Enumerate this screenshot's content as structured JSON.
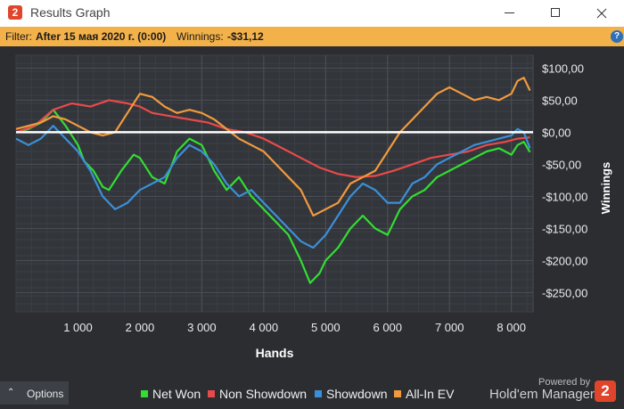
{
  "window": {
    "title": "Results Graph",
    "app_icon_glyph": "2"
  },
  "filter": {
    "label": "Filter:",
    "value": "After 15 мая 2020 г. (0:00)",
    "winnings_label": "Winnings:",
    "winnings_value": "-$31,12",
    "help_glyph": "?"
  },
  "chart_data": {
    "type": "line",
    "xlabel": "Hands",
    "ylabel": "Winnings",
    "x_ticks": [
      1000,
      2000,
      3000,
      4000,
      5000,
      6000,
      7000,
      8000
    ],
    "x_tick_labels": [
      "1 000",
      "2 000",
      "3 000",
      "4 000",
      "5 000",
      "6 000",
      "7 000",
      "8 000"
    ],
    "xlim": [
      0,
      8350
    ],
    "ylim": [
      -280,
      120
    ],
    "y_ticks": [
      100,
      50,
      0,
      -50,
      -100,
      -150,
      -200,
      -250
    ],
    "y_tick_labels": [
      "$100,00",
      "$50,00",
      "$0,00",
      "-$50,00",
      "-$100,00",
      "-$150,00",
      "-$200,00",
      "-$250,00"
    ],
    "grid": true,
    "legend_position": "bottom",
    "zero_line_color": "#ffffff",
    "series": [
      {
        "name": "Net Won",
        "color": "#33dd33",
        "x": [
          0,
          200,
          400,
          600,
          800,
          1000,
          1100,
          1250,
          1400,
          1500,
          1700,
          1900,
          2000,
          2200,
          2400,
          2600,
          2800,
          3000,
          3200,
          3400,
          3600,
          3800,
          4000,
          4200,
          4400,
          4600,
          4750,
          4900,
          5000,
          5200,
          5400,
          5600,
          5800,
          6000,
          6200,
          6400,
          6600,
          6800,
          7000,
          7200,
          7400,
          7600,
          7800,
          8000,
          8100,
          8200,
          8300
        ],
        "y": [
          0,
          5,
          15,
          35,
          10,
          -20,
          -45,
          -60,
          -85,
          -90,
          -60,
          -35,
          -40,
          -70,
          -80,
          -30,
          -10,
          -20,
          -60,
          -90,
          -70,
          -100,
          -120,
          -140,
          -160,
          -200,
          -235,
          -220,
          -200,
          -180,
          -150,
          -130,
          -150,
          -160,
          -120,
          -100,
          -90,
          -70,
          -60,
          -50,
          -40,
          -30,
          -25,
          -35,
          -20,
          -15,
          -31
        ]
      },
      {
        "name": "Non Showdown",
        "color": "#e84a4a",
        "x": [
          0,
          300,
          600,
          900,
          1200,
          1500,
          1800,
          2000,
          2200,
          2500,
          2800,
          3100,
          3400,
          3700,
          4000,
          4300,
          4600,
          4900,
          5200,
          5500,
          5800,
          6100,
          6400,
          6700,
          7000,
          7300,
          7600,
          7900,
          8100,
          8300
        ],
        "y": [
          0,
          10,
          35,
          45,
          40,
          50,
          45,
          40,
          30,
          25,
          20,
          15,
          5,
          0,
          -10,
          -25,
          -40,
          -55,
          -65,
          -70,
          -68,
          -60,
          -50,
          -40,
          -35,
          -30,
          -20,
          -15,
          -10,
          -8
        ]
      },
      {
        "name": "Showdown",
        "color": "#3b8fd8",
        "x": [
          0,
          200,
          400,
          600,
          800,
          1000,
          1200,
          1400,
          1600,
          1800,
          2000,
          2200,
          2400,
          2600,
          2800,
          3000,
          3200,
          3400,
          3600,
          3800,
          4000,
          4200,
          4400,
          4600,
          4800,
          5000,
          5200,
          5400,
          5600,
          5800,
          6000,
          6200,
          6400,
          6600,
          6800,
          7000,
          7200,
          7400,
          7600,
          7800,
          8000,
          8100,
          8200,
          8300
        ],
        "y": [
          -10,
          -20,
          -10,
          10,
          -10,
          -30,
          -60,
          -100,
          -120,
          -110,
          -90,
          -80,
          -70,
          -40,
          -20,
          -30,
          -50,
          -80,
          -100,
          -90,
          -110,
          -130,
          -150,
          -170,
          -180,
          -160,
          -130,
          -100,
          -80,
          -90,
          -110,
          -110,
          -80,
          -70,
          -50,
          -40,
          -30,
          -20,
          -15,
          -10,
          -5,
          5,
          0,
          -25
        ]
      },
      {
        "name": "All-In EV",
        "color": "#f09a3e",
        "x": [
          0,
          200,
          400,
          600,
          800,
          1000,
          1200,
          1400,
          1600,
          1800,
          2000,
          2200,
          2400,
          2600,
          2800,
          3000,
          3200,
          3400,
          3600,
          3800,
          4000,
          4200,
          4400,
          4600,
          4800,
          5000,
          5200,
          5400,
          5600,
          5800,
          6000,
          6200,
          6400,
          6600,
          6800,
          7000,
          7200,
          7400,
          7600,
          7800,
          8000,
          8100,
          8200,
          8300
        ],
        "y": [
          5,
          10,
          15,
          25,
          20,
          10,
          0,
          -5,
          0,
          30,
          60,
          55,
          40,
          30,
          35,
          30,
          20,
          5,
          -10,
          -20,
          -30,
          -50,
          -70,
          -90,
          -130,
          -120,
          -110,
          -80,
          -70,
          -60,
          -30,
          0,
          20,
          40,
          60,
          70,
          60,
          50,
          55,
          50,
          60,
          80,
          85,
          65
        ]
      }
    ]
  },
  "legend": [
    {
      "label": "Net Won",
      "color": "#33dd33"
    },
    {
      "label": "Non Showdown",
      "color": "#e84a4a"
    },
    {
      "label": "Showdown",
      "color": "#3b8fd8"
    },
    {
      "label": "All-In EV",
      "color": "#f09a3e"
    }
  ],
  "bottom": {
    "options_label": "Options",
    "powered_by": "Powered by",
    "brand_name": "Hold'em Manager",
    "brand_logo_glyph": "2"
  }
}
